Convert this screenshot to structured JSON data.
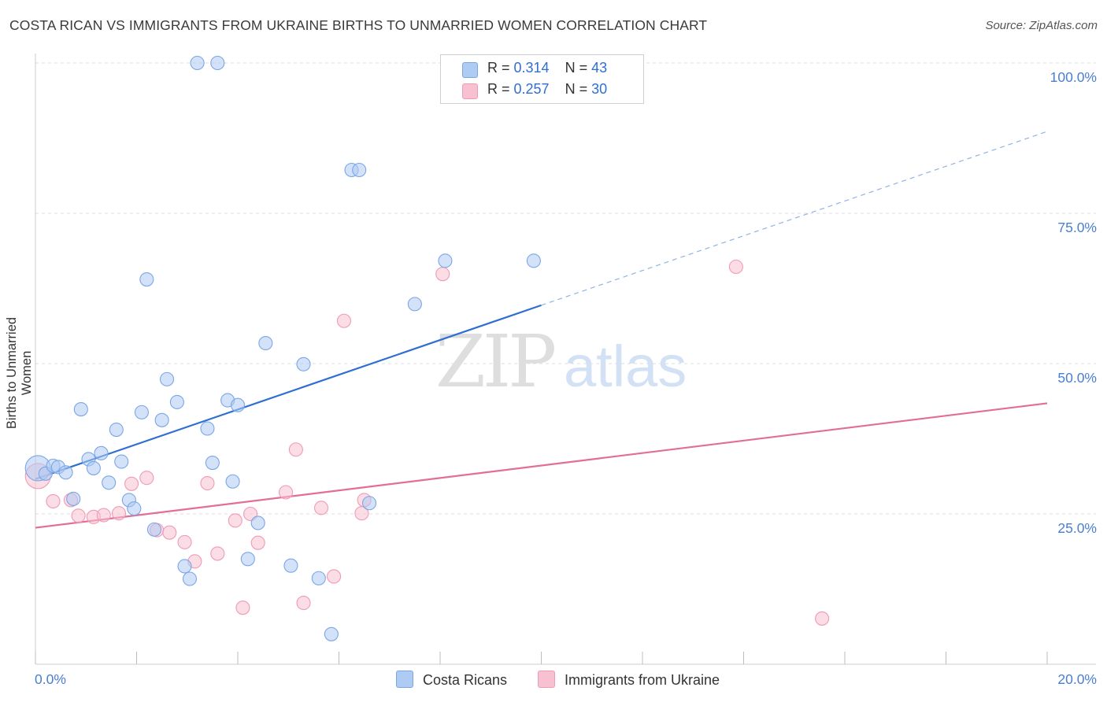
{
  "title": "COSTA RICAN VS IMMIGRANTS FROM UKRAINE BIRTHS TO UNMARRIED WOMEN CORRELATION CHART",
  "source": "Source: ZipAtlas.com",
  "watermark": {
    "zip": "ZIP",
    "atlas": "atlas"
  },
  "legend": {
    "rows": [
      {
        "r_label": "R = ",
        "r_value": "0.314",
        "n_label": "N = ",
        "n_value": "43",
        "color": "#aecbf3"
      },
      {
        "r_label": "R = ",
        "r_value": "0.257",
        "n_label": "N = ",
        "n_value": "30",
        "color": "#f7c1d2"
      }
    ]
  },
  "bottom_legend": {
    "series1": {
      "label": "Costa Ricans",
      "color": "#aecbf3"
    },
    "series2": {
      "label": "Immigrants from Ukraine",
      "color": "#f7c1d2"
    }
  },
  "chart_data": {
    "type": "scatter",
    "title": "COSTA RICAN VS IMMIGRANTS FROM UKRAINE BIRTHS TO UNMARRIED WOMEN CORRELATION CHART",
    "xlabel": "",
    "ylabel": "Births to Unmarried Women",
    "xlim": [
      0,
      20
    ],
    "ylim": [
      0,
      100
    ],
    "x_tick_labels": [
      {
        "value": 0,
        "label": "0.0%"
      },
      {
        "value": 20,
        "label": "20.0%"
      }
    ],
    "y_tick_labels": [
      {
        "value": 25,
        "label": "25.0%"
      },
      {
        "value": 50,
        "label": "50.0%"
      },
      {
        "value": 75,
        "label": "75.0%"
      },
      {
        "value": 100,
        "label": "100.0%"
      }
    ],
    "grid": true,
    "series": [
      {
        "name": "Costa Ricans",
        "color": "#7aa6e6",
        "fill": "#aecbf3",
        "trend": {
          "x0": 0,
          "y0": 30.8,
          "x1": 10,
          "y1": 59.7,
          "dash_to_x": 20,
          "dash_to_y": 88.6,
          "color": "#2f6fd1"
        },
        "points": [
          [
            0.05,
            32.6
          ],
          [
            0.2,
            31.7
          ],
          [
            0.35,
            33.0
          ],
          [
            0.45,
            32.8
          ],
          [
            0.6,
            31.9
          ],
          [
            0.75,
            27.5
          ],
          [
            0.9,
            42.4
          ],
          [
            1.05,
            34.1
          ],
          [
            1.15,
            32.6
          ],
          [
            1.3,
            35.1
          ],
          [
            1.45,
            30.2
          ],
          [
            1.6,
            39.0
          ],
          [
            1.7,
            33.7
          ],
          [
            1.85,
            27.3
          ],
          [
            1.95,
            25.9
          ],
          [
            2.1,
            41.9
          ],
          [
            2.2,
            64.0
          ],
          [
            2.35,
            22.4
          ],
          [
            2.5,
            40.6
          ],
          [
            2.6,
            47.4
          ],
          [
            2.8,
            43.6
          ],
          [
            2.95,
            16.3
          ],
          [
            3.05,
            14.2
          ],
          [
            3.2,
            100.0
          ],
          [
            3.4,
            39.2
          ],
          [
            3.5,
            33.5
          ],
          [
            3.6,
            100.0
          ],
          [
            3.8,
            43.9
          ],
          [
            3.9,
            30.4
          ],
          [
            4.0,
            43.1
          ],
          [
            4.2,
            17.5
          ],
          [
            4.4,
            23.5
          ],
          [
            4.55,
            53.4
          ],
          [
            5.05,
            16.4
          ],
          [
            5.3,
            49.9
          ],
          [
            5.6,
            14.3
          ],
          [
            5.85,
            5.0
          ],
          [
            6.25,
            82.2
          ],
          [
            6.4,
            82.2
          ],
          [
            6.6,
            26.8
          ],
          [
            7.5,
            59.9
          ],
          [
            8.1,
            67.1
          ],
          [
            9.85,
            67.1
          ]
        ]
      },
      {
        "name": "Immigrants from Ukraine",
        "color": "#f09ab6",
        "fill": "#f7c1d2",
        "trend": {
          "x0": 0,
          "y0": 22.7,
          "x1": 20,
          "y1": 43.4,
          "color": "#e26d96"
        },
        "points": [
          [
            0.05,
            31.3
          ],
          [
            0.35,
            27.1
          ],
          [
            0.7,
            27.3
          ],
          [
            0.85,
            24.7
          ],
          [
            1.15,
            24.5
          ],
          [
            1.35,
            24.8
          ],
          [
            1.65,
            25.1
          ],
          [
            1.9,
            30.0
          ],
          [
            2.2,
            31.0
          ],
          [
            2.4,
            22.3
          ],
          [
            2.65,
            21.9
          ],
          [
            2.95,
            20.3
          ],
          [
            3.15,
            17.1
          ],
          [
            3.4,
            30.1
          ],
          [
            3.6,
            18.4
          ],
          [
            3.95,
            23.9
          ],
          [
            4.1,
            9.4
          ],
          [
            4.25,
            25.0
          ],
          [
            4.4,
            20.2
          ],
          [
            4.95,
            28.6
          ],
          [
            5.15,
            35.7
          ],
          [
            5.3,
            10.2
          ],
          [
            5.65,
            26.0
          ],
          [
            5.9,
            14.6
          ],
          [
            6.1,
            57.1
          ],
          [
            6.45,
            25.1
          ],
          [
            6.5,
            27.3
          ],
          [
            8.05,
            64.9
          ],
          [
            13.85,
            66.1
          ],
          [
            15.55,
            7.6
          ]
        ]
      }
    ]
  }
}
